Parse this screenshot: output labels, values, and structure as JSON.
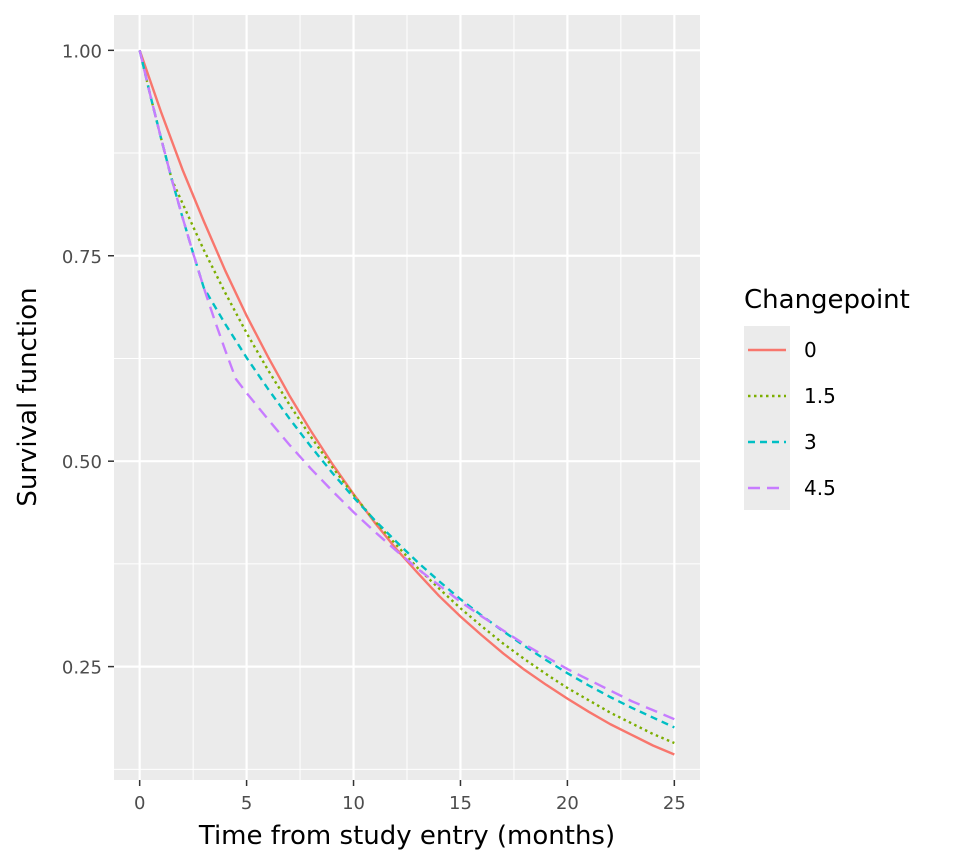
{
  "chart_data": {
    "type": "line",
    "xlabel": "Time from study entry (months)",
    "ylabel": "Survival function",
    "xlim": [
      -1.2,
      26.2
    ],
    "ylim": [
      0.112,
      1.043
    ],
    "x_ticks": [
      0,
      5,
      10,
      15,
      20,
      25
    ],
    "x_tick_labels": [
      "0",
      "5",
      "10",
      "15",
      "20",
      "25"
    ],
    "y_ticks": [
      0.25,
      0.5,
      0.75,
      1.0
    ],
    "y_tick_labels": [
      "0.25",
      "0.50",
      "0.75",
      "1.00"
    ],
    "grid": true,
    "legend_title": "Changepoint",
    "legend_position": "right",
    "series": [
      {
        "name": "0",
        "color": "#F8766D",
        "dash": "solid",
        "points": [
          [
            0,
            1.0
          ],
          [
            1,
            0.925
          ],
          [
            2,
            0.855
          ],
          [
            3,
            0.792
          ],
          [
            4,
            0.732
          ],
          [
            5,
            0.677
          ],
          [
            6,
            0.627
          ],
          [
            7,
            0.58
          ],
          [
            8,
            0.537
          ],
          [
            9,
            0.497
          ],
          [
            10,
            0.46
          ],
          [
            11,
            0.425
          ],
          [
            12,
            0.393
          ],
          [
            13,
            0.364
          ],
          [
            14,
            0.336
          ],
          [
            15,
            0.311
          ],
          [
            16,
            0.288
          ],
          [
            17,
            0.266
          ],
          [
            18,
            0.246
          ],
          [
            19,
            0.228
          ],
          [
            20,
            0.211
          ],
          [
            21,
            0.195
          ],
          [
            22,
            0.18
          ],
          [
            23,
            0.167
          ],
          [
            24,
            0.154
          ],
          [
            25,
            0.143
          ]
        ]
      },
      {
        "name": "1.5",
        "color": "#7CAE00",
        "dash": "dotted",
        "points": [
          [
            0,
            1.0
          ],
          [
            0.5,
            0.945
          ],
          [
            1,
            0.893
          ],
          [
            1.5,
            0.843
          ],
          [
            2,
            0.814
          ],
          [
            3,
            0.757
          ],
          [
            4,
            0.705
          ],
          [
            5,
            0.656
          ],
          [
            6,
            0.611
          ],
          [
            7,
            0.569
          ],
          [
            8,
            0.53
          ],
          [
            9,
            0.493
          ],
          [
            10,
            0.459
          ],
          [
            11,
            0.427
          ],
          [
            12,
            0.398
          ],
          [
            13,
            0.37
          ],
          [
            14,
            0.345
          ],
          [
            15,
            0.321
          ],
          [
            16,
            0.299
          ],
          [
            17,
            0.278
          ],
          [
            18,
            0.259
          ],
          [
            19,
            0.241
          ],
          [
            20,
            0.224
          ],
          [
            21,
            0.209
          ],
          [
            22,
            0.194
          ],
          [
            23,
            0.181
          ],
          [
            24,
            0.168
          ],
          [
            25,
            0.157
          ]
        ]
      },
      {
        "name": "3",
        "color": "#00BFC4",
        "dash": "dashed-short",
        "points": [
          [
            0,
            1.0
          ],
          [
            0.5,
            0.945
          ],
          [
            1,
            0.893
          ],
          [
            1.5,
            0.843
          ],
          [
            2,
            0.797
          ],
          [
            2.5,
            0.753
          ],
          [
            3,
            0.711
          ],
          [
            4,
            0.667
          ],
          [
            5,
            0.626
          ],
          [
            6,
            0.588
          ],
          [
            7,
            0.552
          ],
          [
            8,
            0.518
          ],
          [
            9,
            0.486
          ],
          [
            10,
            0.456
          ],
          [
            11,
            0.428
          ],
          [
            12,
            0.402
          ],
          [
            13,
            0.377
          ],
          [
            14,
            0.354
          ],
          [
            15,
            0.332
          ],
          [
            16,
            0.312
          ],
          [
            17,
            0.293
          ],
          [
            18,
            0.275
          ],
          [
            19,
            0.258
          ],
          [
            20,
            0.242
          ],
          [
            21,
            0.227
          ],
          [
            22,
            0.213
          ],
          [
            23,
            0.2
          ],
          [
            24,
            0.188
          ],
          [
            25,
            0.176
          ]
        ]
      },
      {
        "name": "4.5",
        "color": "#C77CFF",
        "dash": "dashed-long",
        "points": [
          [
            0,
            1.0
          ],
          [
            0.5,
            0.945
          ],
          [
            1,
            0.893
          ],
          [
            1.5,
            0.843
          ],
          [
            2,
            0.797
          ],
          [
            2.5,
            0.753
          ],
          [
            3,
            0.711
          ],
          [
            3.5,
            0.672
          ],
          [
            4,
            0.635
          ],
          [
            4.5,
            0.6
          ],
          [
            5,
            0.583
          ],
          [
            6,
            0.551
          ],
          [
            7,
            0.52
          ],
          [
            8,
            0.491
          ],
          [
            9,
            0.464
          ],
          [
            10,
            0.438
          ],
          [
            11,
            0.414
          ],
          [
            12,
            0.391
          ],
          [
            13,
            0.369
          ],
          [
            14,
            0.349
          ],
          [
            15,
            0.329
          ],
          [
            16,
            0.311
          ],
          [
            17,
            0.294
          ],
          [
            18,
            0.277
          ],
          [
            19,
            0.262
          ],
          [
            20,
            0.247
          ],
          [
            21,
            0.234
          ],
          [
            22,
            0.221
          ],
          [
            23,
            0.208
          ],
          [
            24,
            0.197
          ],
          [
            25,
            0.186
          ]
        ]
      }
    ]
  }
}
